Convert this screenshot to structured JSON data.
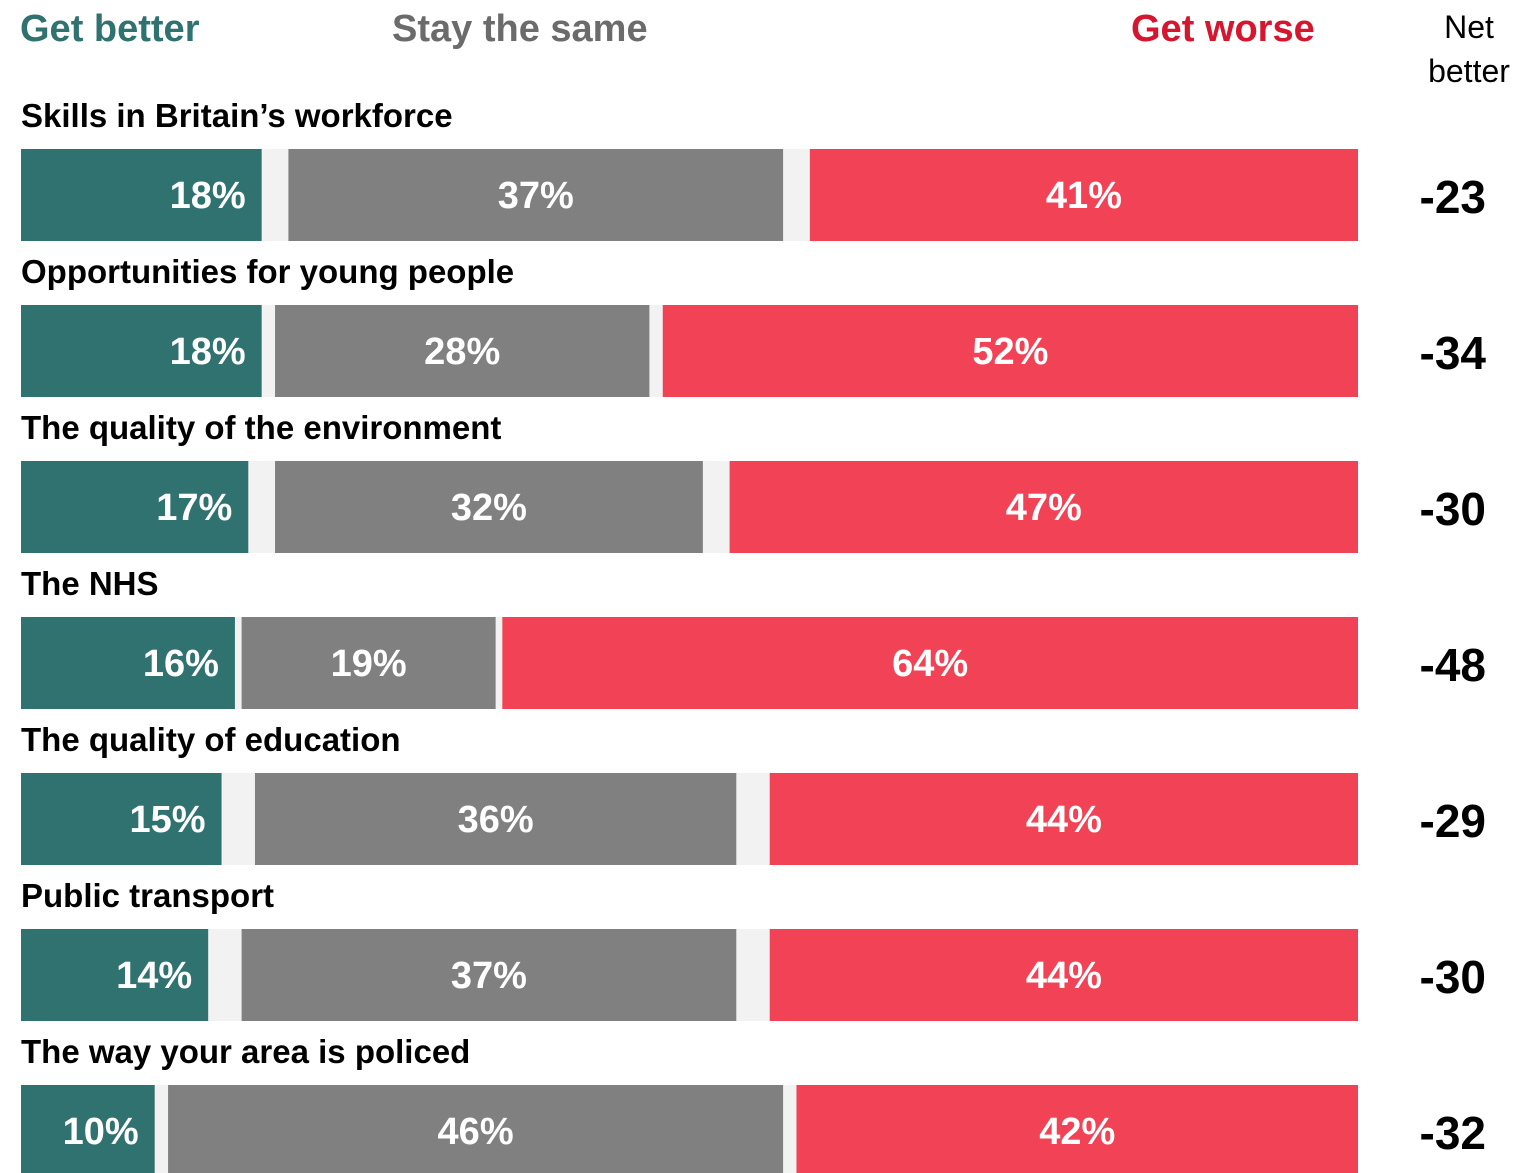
{
  "legend": {
    "get_better": "Get better",
    "stay_same": "Stay the same",
    "get_worse": "Get worse",
    "net_header_line1": "Net",
    "net_header_line2": "better"
  },
  "colors": {
    "get_better": "#307270",
    "stay_same": "#808080",
    "get_worse": "#f14355",
    "gap": "#f2f2f2",
    "legend_better": "#307270",
    "legend_same": "#6b6b6b",
    "legend_worse": "#d6152f"
  },
  "chart_data": {
    "type": "bar",
    "orientation": "horizontal",
    "stacked": true,
    "value_suffix": "%",
    "series": [
      {
        "name": "Get better",
        "values": [
          18,
          18,
          17,
          16,
          15,
          14,
          10
        ]
      },
      {
        "name": "Stay the same",
        "values": [
          37,
          28,
          32,
          19,
          36,
          37,
          46
        ]
      },
      {
        "name": "Get worse",
        "values": [
          41,
          52,
          47,
          64,
          44,
          44,
          42
        ]
      }
    ],
    "categories": [
      "Skills in Britain’s workforce",
      "Opportunities for young people",
      "The quality of the environment",
      "The NHS",
      "The quality of education",
      "Public transport",
      "The way your area is policed"
    ],
    "net_better": [
      "-23",
      "-34",
      "-30",
      "-48",
      "-29",
      "-30",
      "-32"
    ],
    "xlim": [
      0,
      100
    ],
    "legend_position": "top",
    "grid": false
  }
}
